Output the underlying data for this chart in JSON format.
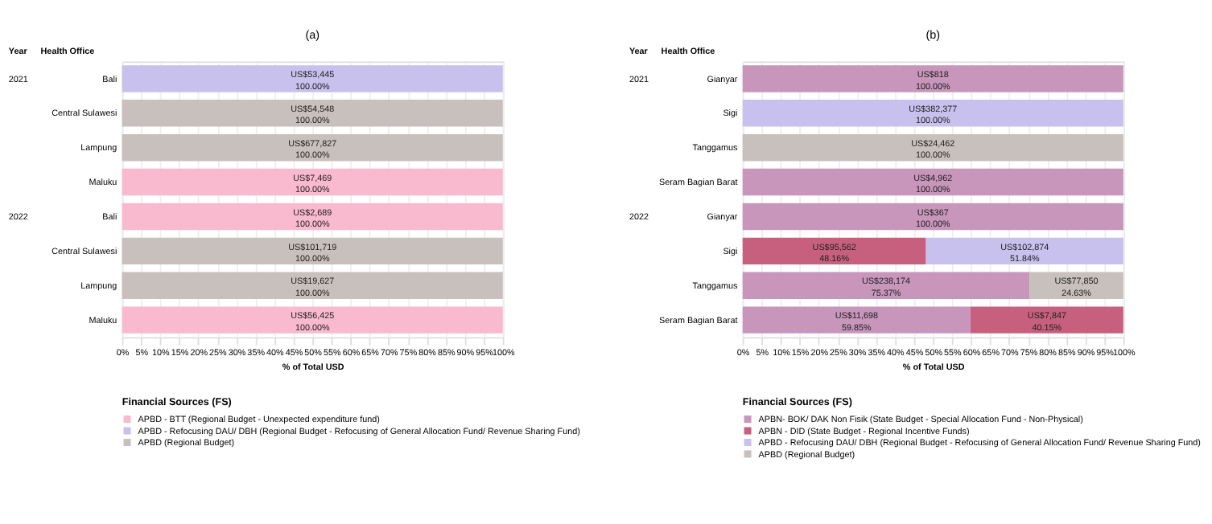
{
  "chart_data": [
    {
      "type": "bar",
      "orientation": "horizontal",
      "stacked": true,
      "title": "(a)",
      "xlabel": "% of Total USD",
      "legend_title": "Financial Sources (FS)",
      "legend": "bottom",
      "grid": "x",
      "categories": [
        "Bali",
        "Central Sulawesi",
        "Lampung",
        "Maluku",
        "Bali",
        "Central Sulawesi",
        "Lampung",
        "Maluku"
      ],
      "annotations": [
        "Year",
        "Health Office",
        "2021",
        "2022"
      ],
      "xlim": [
        0,
        100
      ],
      "xticks": [
        {
          "value": 0,
          "label": "0%"
        },
        {
          "value": 5,
          "label": "5%"
        },
        {
          "value": 10,
          "label": "10%"
        },
        {
          "value": 15,
          "label": "15%"
        },
        {
          "value": 20,
          "label": "20%"
        },
        {
          "value": 25,
          "label": "25%"
        },
        {
          "value": 30,
          "label": "30%"
        },
        {
          "value": 35,
          "label": "35%"
        },
        {
          "value": 40,
          "label": "40%"
        },
        {
          "value": 45,
          "label": "45%"
        },
        {
          "value": 50,
          "label": "50%"
        },
        {
          "value": 55,
          "label": "55%"
        },
        {
          "value": 60,
          "label": "60%"
        },
        {
          "value": 65,
          "label": "65%"
        },
        {
          "value": 70,
          "label": "70%"
        },
        {
          "value": 75,
          "label": "75%"
        },
        {
          "value": 80,
          "label": "80%"
        },
        {
          "value": 85,
          "label": "85%"
        },
        {
          "value": 90,
          "label": "90%"
        },
        {
          "value": 95,
          "label": "95%"
        },
        {
          "value": 100,
          "label": "100%"
        }
      ],
      "series": [
        {
          "name": "APBD - BTT (Regional Budget - Unexpected expenditure fund)",
          "color": "#f9bad0",
          "values": [
            null,
            null,
            null,
            100,
            100,
            null,
            null,
            100
          ],
          "value_labels": [
            null,
            null,
            null,
            "US$7,469\n100.00%",
            "US$2,689\n100.00%",
            null,
            null,
            "US$56,425\n100.00%"
          ]
        },
        {
          "name": "APBD - Refocusing DAU/ DBH (Regional Budget - Refocusing of General Allocation Fund/ Revenue Sharing Fund)",
          "color": "#c8c1ee",
          "values": [
            100,
            null,
            null,
            null,
            null,
            null,
            null,
            null
          ],
          "value_labels": [
            "US$53,445\n100.00%",
            null,
            null,
            null,
            null,
            null,
            null,
            null
          ]
        },
        {
          "name": "APBD (Regional Budget)",
          "color": "#c8c0bd",
          "values": [
            null,
            100,
            100,
            null,
            null,
            100,
            100,
            null
          ],
          "value_labels": [
            null,
            "US$54,548\n100.00%",
            "US$677,827\n100.00%",
            null,
            null,
            "US$101,719\n100.00%",
            "US$19,627\n100.00%",
            null
          ]
        }
      ]
    },
    {
      "type": "bar",
      "orientation": "horizontal",
      "stacked": true,
      "title": "(b)",
      "xlabel": "% of Total USD",
      "legend_title": "Financial Sources (FS)",
      "legend": "bottom",
      "grid": "x",
      "categories": [
        "Gianyar",
        "Sigi",
        "Tanggamus",
        "Seram Bagian Barat",
        "Gianyar",
        "Sigi",
        "Tanggamus",
        "Seram Bagian Barat"
      ],
      "annotations": [
        "Year",
        "Health Office",
        "2021",
        "2022"
      ],
      "xlim": [
        0,
        100
      ],
      "xticks": [
        {
          "value": 0,
          "label": "0%"
        },
        {
          "value": 5,
          "label": "5%"
        },
        {
          "value": 10,
          "label": "10%"
        },
        {
          "value": 15,
          "label": "15%"
        },
        {
          "value": 20,
          "label": "20%"
        },
        {
          "value": 25,
          "label": "25%"
        },
        {
          "value": 30,
          "label": "30%"
        },
        {
          "value": 35,
          "label": "35%"
        },
        {
          "value": 40,
          "label": "40%"
        },
        {
          "value": 45,
          "label": "45%"
        },
        {
          "value": 50,
          "label": "50%"
        },
        {
          "value": 55,
          "label": "55%"
        },
        {
          "value": 60,
          "label": "60%"
        },
        {
          "value": 65,
          "label": "65%"
        },
        {
          "value": 70,
          "label": "70%"
        },
        {
          "value": 75,
          "label": "75%"
        },
        {
          "value": 80,
          "label": "80%"
        },
        {
          "value": 85,
          "label": "85%"
        },
        {
          "value": 90,
          "label": "90%"
        },
        {
          "value": 95,
          "label": "95%"
        },
        {
          "value": 100,
          "label": "100%"
        }
      ],
      "series": [
        {
          "name": "APBN- BOK/ DAK Non Fisik (State Budget -  Special Allocation Fund - Non-Physical)",
          "color": "#c896bb",
          "values": [
            100,
            null,
            null,
            100,
            100,
            null,
            75.37,
            59.85
          ],
          "value_labels": [
            "US$818\n100.00%",
            null,
            null,
            "US$4,962\n100.00%",
            "US$367\n100.00%",
            null,
            "US$238,174\n75.37%",
            "US$11,698\n59.85%"
          ]
        },
        {
          "name": "APBN - DID (State Budget - Regional Incentive Funds)",
          "color": "#c7607f",
          "values": [
            null,
            null,
            null,
            null,
            null,
            48.16,
            null,
            40.15
          ],
          "value_labels": [
            null,
            null,
            null,
            null,
            null,
            "US$95,562\n48.16%",
            null,
            "US$7,847\n40.15%"
          ]
        },
        {
          "name": "APBD - Refocusing DAU/ DBH (Regional Budget - Refocusing of General Allocation Fund/ Revenue Sharing Fund)",
          "color": "#c8c1ee",
          "values": [
            null,
            100,
            null,
            null,
            null,
            51.84,
            null,
            null
          ],
          "value_labels": [
            null,
            "US$382,377\n100.00%",
            null,
            null,
            null,
            "US$102,874\n51.84%",
            null,
            null
          ]
        },
        {
          "name": "APBD (Regional Budget)",
          "color": "#c8c0bd",
          "values": [
            null,
            null,
            100,
            null,
            null,
            null,
            24.63,
            null
          ],
          "value_labels": [
            null,
            null,
            "US$24,462\n100.00%",
            null,
            null,
            null,
            "US$77,850\n24.63%",
            null
          ]
        }
      ]
    }
  ]
}
